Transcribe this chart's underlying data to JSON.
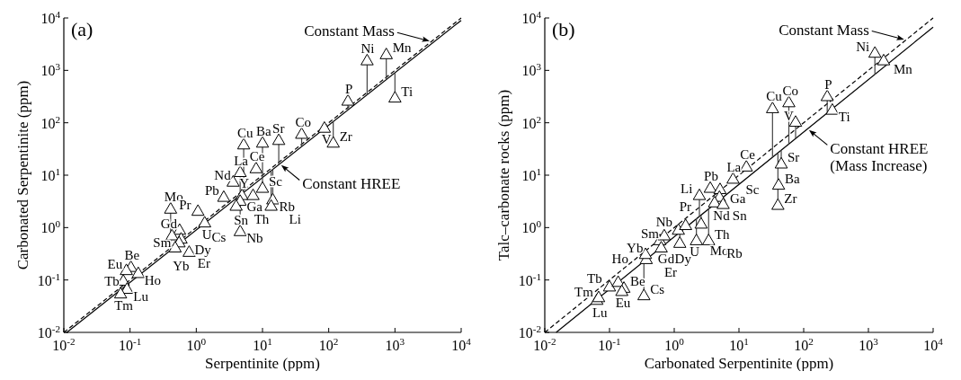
{
  "chart_data": [
    {
      "type": "scatter",
      "title": "(a)",
      "xlabel": "Serpentinite (ppm)",
      "ylabel": "Carbonated Serpentinite (ppm)",
      "log": "xy",
      "xlim": [
        0.01,
        10000
      ],
      "ylim": [
        0.01,
        10000
      ],
      "xticks": [
        {
          "value": 0.01,
          "label": "10$^{-2}$"
        },
        {
          "value": 0.1,
          "label": "10$^{-1}$"
        },
        {
          "value": 1,
          "label": "10$^{0}$"
        },
        {
          "value": 10,
          "label": "10$^{1}$"
        },
        {
          "value": 100,
          "label": "10$^{2}$"
        },
        {
          "value": 1000,
          "label": "10$^{3}$"
        },
        {
          "value": 10000,
          "label": "10$^{4}$"
        }
      ],
      "yticks": [
        {
          "value": 0.01,
          "label": "10$^{-2}$"
        },
        {
          "value": 0.1,
          "label": "10$^{-1}$"
        },
        {
          "value": 1,
          "label": "10$^{0}$"
        },
        {
          "value": 10,
          "label": "10$^{1}$"
        },
        {
          "value": 100,
          "label": "10$^{2}$"
        },
        {
          "value": 1000,
          "label": "10$^{3}$"
        },
        {
          "value": 10000,
          "label": "10$^{4}$"
        }
      ],
      "series": [
        {
          "color": "#000000",
          "marker": "triangle",
          "x": [
            0.41,
            1.06,
            1.34,
            0.56,
            0.43,
            0.59,
            0.55,
            0.48,
            0.78,
            0.103,
            0.088,
            0.133,
            0.079,
            0.09,
            0.072,
            5.2,
            4.6,
            8,
            3.6,
            2.6,
            4.9,
            4.6,
            4.0,
            4.6,
            7.2,
            10,
            10,
            17.6,
            14.3,
            13.5,
            39,
            86,
            117,
            195,
            380,
            740,
            1000
          ],
          "values": [
            2.2,
            2.0,
            1.2,
            0.87,
            0.68,
            0.59,
            0.5,
            0.4,
            0.33,
            0.17,
            0.148,
            0.13,
            0.093,
            0.065,
            0.053,
            37,
            11,
            13,
            7.2,
            3.7,
            4.0,
            3.1,
            2.5,
            0.82,
            4.0,
            40,
            5.5,
            45,
            3.3,
            2.5,
            59,
            77,
            40,
            253,
            1490,
            1950,
            290
          ],
          "errors": [
            [
              0.37,
              2.2
            ],
            null,
            null,
            null,
            null,
            null,
            null,
            null,
            null,
            null,
            null,
            null,
            null,
            null,
            null,
            [
              4.7,
              37
            ],
            [
              4.1,
              11
            ],
            null,
            null,
            null,
            null,
            null,
            null,
            [
              0.82,
              4.1
            ],
            null,
            [
              9,
              40
            ],
            [
              5.5,
              9
            ],
            [
              16,
              45
            ],
            [
              3.3,
              13
            ],
            [
              2.5,
              12
            ],
            [
              35,
              59
            ],
            null,
            [
              40,
              105
            ],
            [
              175,
              253
            ],
            [
              340,
              1490
            ],
            [
              670,
              1950
            ],
            [
              290,
              900
            ]
          ],
          "value_labels": [
            "Mo",
            "Pr",
            "U",
            "Gd",
            "Sm",
            "Dy",
            "Yb",
            "Er",
            "Cs",
            "Be",
            "Eu",
            "Ho",
            "Tb",
            "Lu",
            "Tm",
            "Cu",
            "La",
            "Ce",
            "Nd",
            "Pb",
            "Y",
            "Sn",
            "Th",
            "Nb",
            "Ga",
            "Ba",
            "Sc",
            "Sr",
            "Rb",
            "Li",
            "Co",
            "V",
            "Zr",
            "P",
            "Ni",
            "Mn",
            "Ti"
          ]
        },
        {
          "type": "line",
          "name": "Constant Mass",
          "color": "#000000",
          "line_style": "dashed",
          "x": [
            0.01,
            10000
          ],
          "values": [
            0.01,
            10000
          ]
        },
        {
          "type": "line",
          "name": "Constant HREE",
          "color": "#000000",
          "line_style": "solid",
          "x": [
            0.0111,
            10000
          ],
          "values": [
            0.01,
            9000
          ]
        }
      ]
    },
    {
      "type": "scatter",
      "title": "(b)",
      "xlabel": "Carbonated Serpentinite (ppm)",
      "ylabel": "Talc–carbonate rocks (ppm)",
      "log": "xy",
      "xlim": [
        0.01,
        10000
      ],
      "ylim": [
        0.01,
        10000
      ],
      "xticks": [
        {
          "value": 0.01,
          "label": "10$^{-2}$"
        },
        {
          "value": 0.1,
          "label": "10$^{-1}$"
        },
        {
          "value": 1,
          "label": "10$^{0}$"
        },
        {
          "value": 10,
          "label": "10$^{1}$"
        },
        {
          "value": 100,
          "label": "10$^{2}$"
        },
        {
          "value": 1000,
          "label": "10$^{3}$"
        },
        {
          "value": 10000,
          "label": "10$^{4}$"
        }
      ],
      "yticks": [
        {
          "value": 0.01,
          "label": "10$^{-2}$"
        },
        {
          "value": 0.1,
          "label": "10$^{-1}$"
        },
        {
          "value": 1,
          "label": "10$^{0}$"
        },
        {
          "value": 10,
          "label": "10$^{1}$"
        },
        {
          "value": 100,
          "label": "10$^{2}$"
        },
        {
          "value": 1000,
          "label": "10$^{3}$"
        },
        {
          "value": 10000,
          "label": "10$^{4}$"
        }
      ],
      "series": [
        {
          "color": "#000000",
          "marker": "triangle",
          "x": [
            0.064,
            0.068,
            0.1,
            0.136,
            0.167,
            0.155,
            0.34,
            0.37,
            0.36,
            0.6,
            0.7,
            0.63,
            1.22,
            1.16,
            1.5,
            2.2,
            2.45,
            2.6,
            3.4,
            3.6,
            5.1,
            5.0,
            4.2,
            5.7,
            8.1,
            13,
            33,
            59,
            75,
            45,
            41,
            40,
            231,
            277,
            1260,
            1720
          ],
          "values": [
            0.04,
            0.045,
            0.072,
            0.088,
            0.068,
            0.059,
            0.049,
            0.24,
            0.3,
            0.55,
            0.68,
            0.4,
            0.49,
            0.87,
            1.07,
            0.55,
            4.0,
            1.14,
            0.55,
            5.5,
            5.2,
            3.7,
            2.9,
            2.7,
            8.2,
            14,
            182,
            236,
            100,
            16,
            6.3,
            2.6,
            309,
            170,
            2080,
            1490
          ],
          "errors": [
            null,
            null,
            null,
            null,
            null,
            null,
            [
              0.049,
              0.23
            ],
            null,
            null,
            null,
            null,
            null,
            [
              0.49,
              0.81
            ],
            null,
            null,
            [
              0.55,
              1.5
            ],
            [
              1.6,
              4.0
            ],
            [
              1.14,
              1.7
            ],
            [
              0.55,
              2.3
            ],
            null,
            null,
            null,
            null,
            null,
            null,
            null,
            [
              22,
              182
            ],
            [
              39,
              236
            ],
            [
              50,
              100
            ],
            [
              16,
              30
            ],
            null,
            [
              2.6,
              27
            ],
            [
              154,
              309
            ],
            null,
            [
              840,
              2080
            ],
            null
          ],
          "value_labels": [
            "Tm",
            "Lu",
            "Tb",
            "Ho",
            "Be",
            "Eu",
            "Cs",
            "Er",
            "Yb",
            "Sm",
            "Gd",
            "Dy",
            "U",
            "Nb",
            "Pr",
            "Mo",
            "Li",
            "Th",
            "Rb",
            "Pb",
            "Ga",
            "Nd",
            "Sn",
            "Sc",
            "La",
            "Ce",
            "Cu",
            "Co",
            "V",
            "Sr",
            "Ba",
            "Zr",
            "P",
            "Ti",
            "Ni",
            "Mn"
          ]
        },
        {
          "type": "line",
          "name": "Constant Mass",
          "color": "#000000",
          "line_style": "dashed",
          "x": [
            0.01,
            10000
          ],
          "values": [
            0.01,
            10000
          ]
        },
        {
          "type": "line",
          "name": "Constant HREE (Mass Increase)",
          "color": "#000000",
          "line_style": "solid",
          "x": [
            0.015,
            10000
          ],
          "values": [
            0.01,
            6670
          ]
        }
      ]
    }
  ]
}
